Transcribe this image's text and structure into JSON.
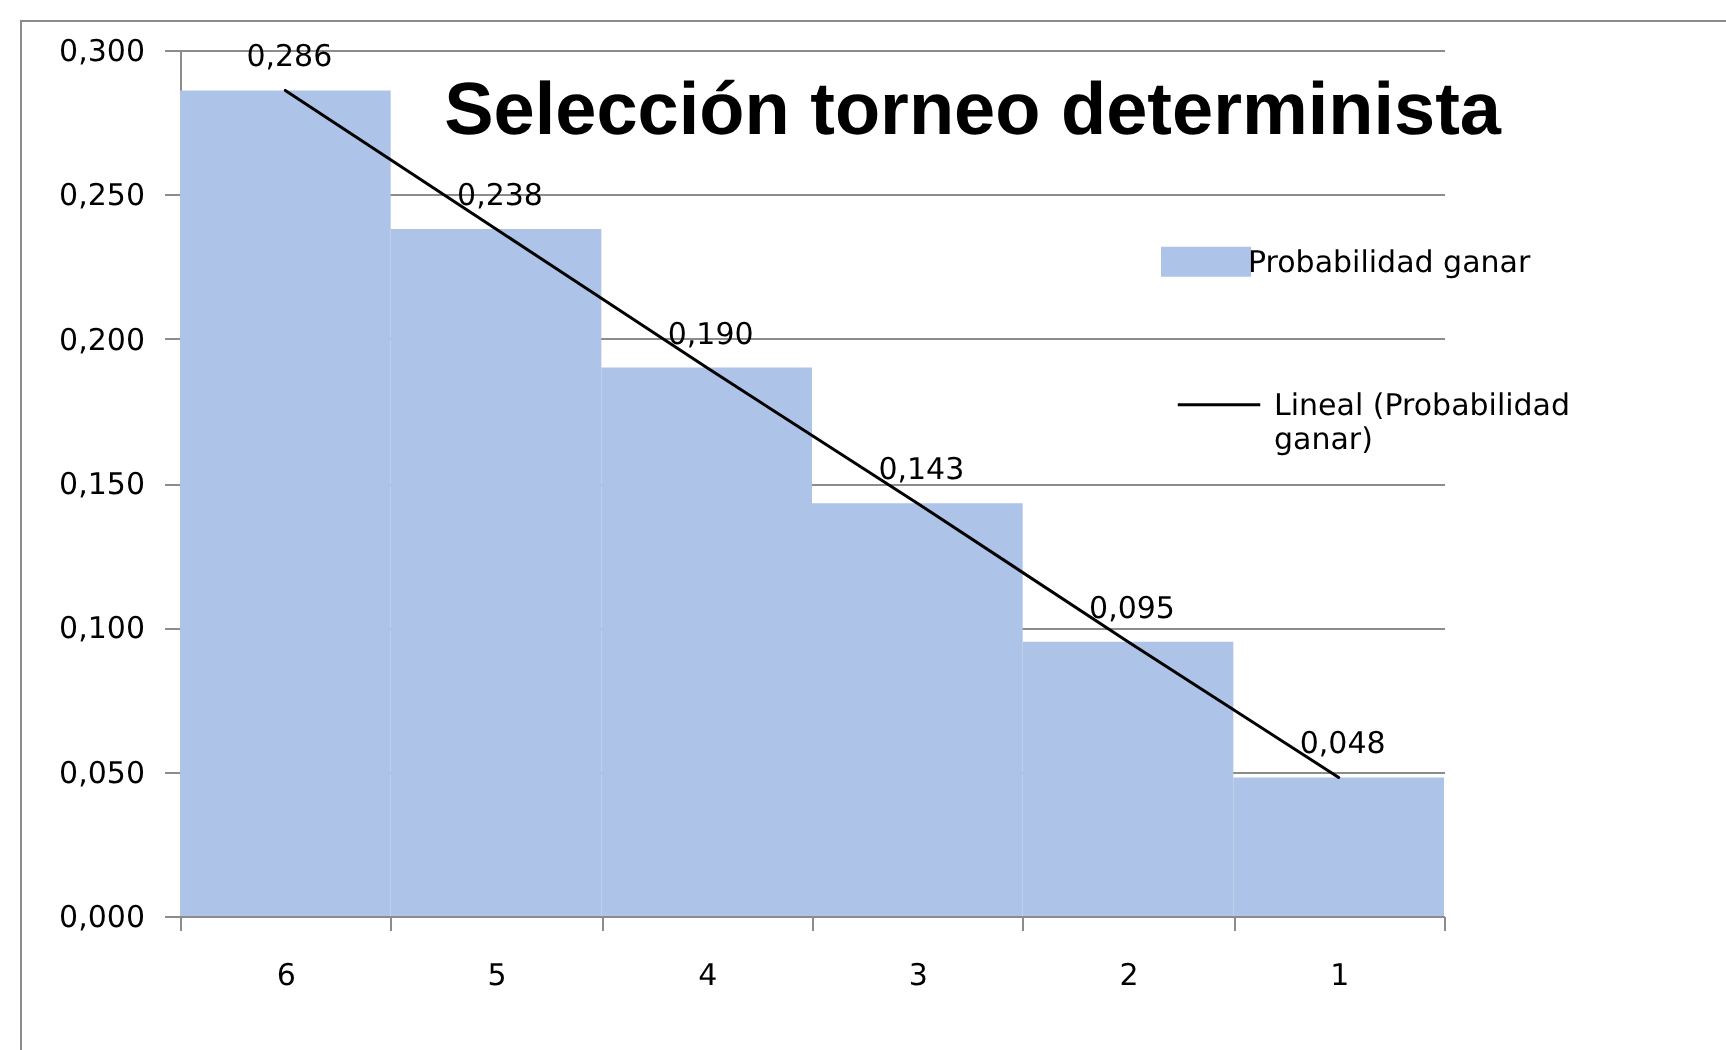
{
  "chart_data": {
    "type": "bar",
    "title": "Selección torneo determinista",
    "categories": [
      "6",
      "5",
      "4",
      "3",
      "2",
      "1"
    ],
    "series": [
      {
        "name": "Probabilidad ganar",
        "color": "#aec3e8",
        "values": [
          0.286,
          0.238,
          0.19,
          0.143,
          0.095,
          0.048
        ],
        "value_labels": [
          "0,286",
          "0,238",
          "0,190",
          "0,143",
          "0,095",
          "0,048"
        ]
      },
      {
        "name": "Lineal (Probabilidad ganar)",
        "type": "line",
        "color": "#000000",
        "values": [
          0.286,
          0.238,
          0.19,
          0.143,
          0.095,
          0.048
        ]
      }
    ],
    "ylim": [
      0,
      0.3
    ],
    "yticks": [
      {
        "value": 0,
        "label": "0,000"
      },
      {
        "value": 0.05,
        "label": "0,050"
      },
      {
        "value": 0.1,
        "label": "0,100"
      },
      {
        "value": 0.15,
        "label": "0,150"
      },
      {
        "value": 0.2,
        "label": "0,200"
      },
      {
        "value": 0.25,
        "label": "0,250"
      },
      {
        "value": 0.3,
        "label": "0,300"
      }
    ],
    "grid": "y",
    "legend": "right"
  }
}
